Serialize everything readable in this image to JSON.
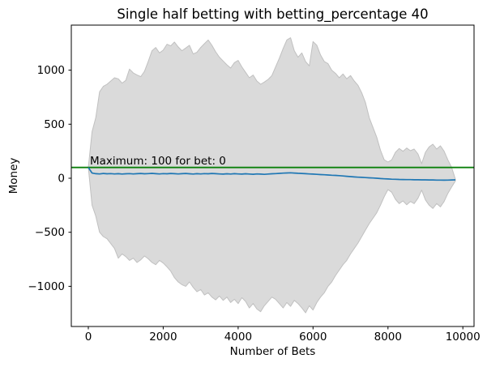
{
  "chart_data": {
    "type": "area",
    "title": "Single half betting with betting_percentage 40",
    "xlabel": "Number of Bets",
    "ylabel": "Money",
    "grid": false,
    "legend": "none",
    "xlim": [
      -454,
      10298
    ],
    "ylim": [
      -1372,
      1417
    ],
    "x_ticks": [
      0,
      2000,
      4000,
      6000,
      8000,
      10000
    ],
    "x_tick_labels": [
      "0",
      "2000",
      "4000",
      "6000",
      "8000",
      "10000"
    ],
    "y_ticks": [
      1000,
      500,
      0,
      -500,
      -1000
    ],
    "y_tick_labels": [
      "1000",
      "500",
      "0",
      "−500",
      "−1000"
    ],
    "hline": {
      "y": 100,
      "color": "#0b800b"
    },
    "annotation": {
      "text": "Maximum: 100 for bet: 0",
      "x": 0,
      "y": 100
    },
    "colors": {
      "band": "#dadada",
      "band_edge": "#c0c0c0",
      "mean": "#1f77b4",
      "axes": "#000000"
    },
    "x": {
      "start": 0,
      "step": 100,
      "count": 99
    },
    "series": [
      {
        "name": "max",
        "values": [
          100,
          430,
          560,
          800,
          850,
          870,
          900,
          930,
          920,
          880,
          905,
          1010,
          975,
          955,
          940,
          990,
          1080,
          1180,
          1210,
          1160,
          1185,
          1240,
          1225,
          1260,
          1215,
          1180,
          1205,
          1230,
          1150,
          1165,
          1210,
          1245,
          1280,
          1230,
          1170,
          1120,
          1085,
          1050,
          1020,
          1070,
          1090,
          1030,
          980,
          930,
          955,
          900,
          870,
          890,
          915,
          950,
          1030,
          1110,
          1200,
          1280,
          1300,
          1180,
          1120,
          1160,
          1080,
          1040,
          1265,
          1230,
          1140,
          1080,
          1060,
          1000,
          970,
          930,
          965,
          920,
          950,
          900,
          860,
          790,
          700,
          560,
          470,
          380,
          260,
          170,
          150,
          170,
          240,
          275,
          250,
          280,
          255,
          270,
          225,
          135,
          240,
          290,
          315,
          270,
          300,
          250,
          170,
          100,
          -10
        ]
      },
      {
        "name": "mean",
        "values": [
          100,
          48,
          42,
          40,
          44,
          41,
          43,
          40,
          42,
          39,
          41,
          43,
          40,
          42,
          44,
          41,
          43,
          45,
          42,
          40,
          43,
          41,
          44,
          42,
          40,
          42,
          44,
          41,
          39,
          42,
          40,
          43,
          41,
          44,
          42,
          40,
          38,
          41,
          39,
          42,
          40,
          38,
          41,
          39,
          37,
          40,
          38,
          36,
          39,
          41,
          43,
          45,
          47,
          49,
          50,
          48,
          46,
          44,
          42,
          40,
          38,
          36,
          34,
          32,
          30,
          28,
          26,
          24,
          21,
          18,
          15,
          12,
          10,
          8,
          6,
          4,
          2,
          0,
          -3,
          -5,
          -7,
          -9,
          -10,
          -11,
          -12,
          -13,
          -13,
          -14,
          -14,
          -15,
          -15,
          -16,
          -16,
          -17,
          -17,
          -18,
          -17,
          -16,
          -15
        ]
      },
      {
        "name": "min",
        "values": [
          100,
          -250,
          -350,
          -500,
          -540,
          -560,
          -605,
          -650,
          -740,
          -700,
          -725,
          -760,
          -740,
          -780,
          -755,
          -720,
          -745,
          -780,
          -800,
          -760,
          -785,
          -820,
          -860,
          -920,
          -960,
          -985,
          -1000,
          -960,
          -1010,
          -1050,
          -1030,
          -1080,
          -1060,
          -1100,
          -1125,
          -1090,
          -1130,
          -1100,
          -1150,
          -1120,
          -1160,
          -1105,
          -1140,
          -1200,
          -1160,
          -1210,
          -1235,
          -1180,
          -1140,
          -1100,
          -1120,
          -1160,
          -1200,
          -1150,
          -1185,
          -1130,
          -1160,
          -1200,
          -1245,
          -1180,
          -1220,
          -1150,
          -1100,
          -1060,
          -1000,
          -960,
          -900,
          -850,
          -800,
          -760,
          -700,
          -650,
          -600,
          -540,
          -480,
          -420,
          -370,
          -320,
          -250,
          -170,
          -105,
          -130,
          -195,
          -235,
          -210,
          -245,
          -215,
          -235,
          -185,
          -110,
          -200,
          -250,
          -280,
          -235,
          -265,
          -215,
          -140,
          -80,
          -25
        ]
      }
    ]
  }
}
